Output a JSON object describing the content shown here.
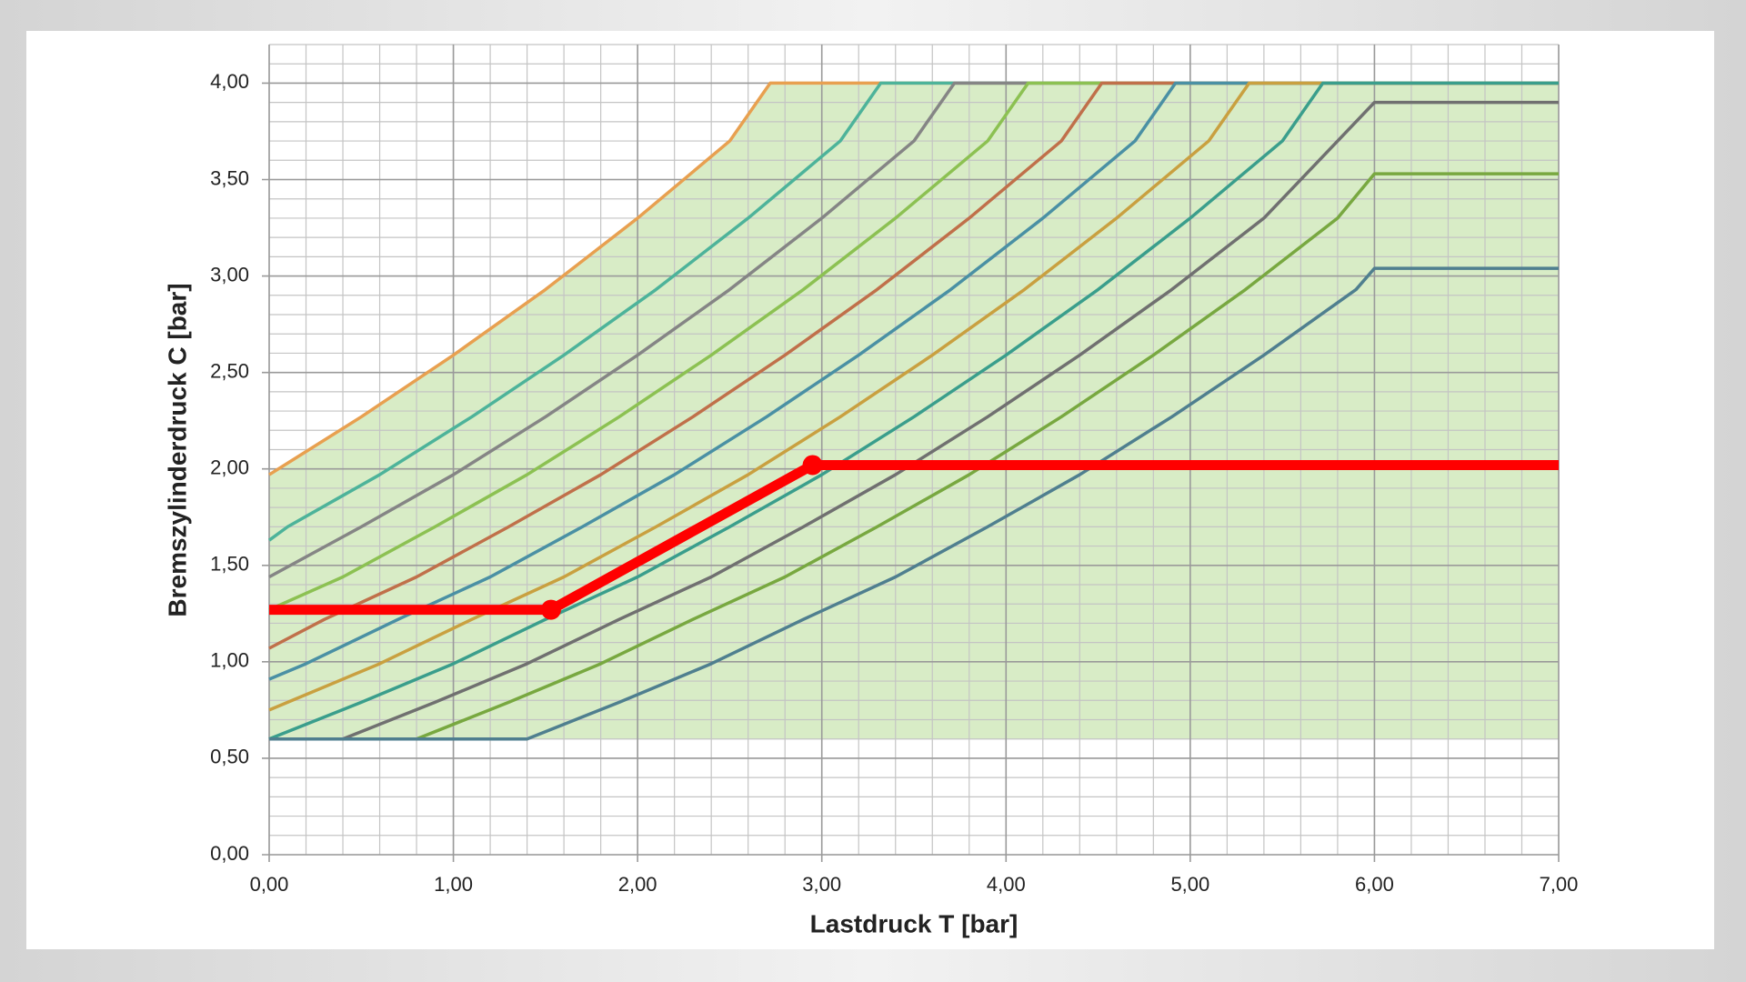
{
  "chart_data": {
    "type": "line",
    "xlabel": "Lastdruck T [bar]",
    "ylabel": "Bremszylinderdruck C [bar]",
    "xlim": [
      0,
      7
    ],
    "ylim": [
      0,
      4.2
    ],
    "xticks": [
      {
        "value": 0,
        "label": "0,00"
      },
      {
        "value": 1,
        "label": "1,00"
      },
      {
        "value": 2,
        "label": "2,00"
      },
      {
        "value": 3,
        "label": "3,00"
      },
      {
        "value": 4,
        "label": "4,00"
      },
      {
        "value": 5,
        "label": "5,00"
      },
      {
        "value": 6,
        "label": "6,00"
      },
      {
        "value": 7,
        "label": "7,00"
      }
    ],
    "yticks": [
      {
        "value": 0,
        "label": "0,00"
      },
      {
        "value": 0.5,
        "label": "0,50"
      },
      {
        "value": 1,
        "label": "1,00"
      },
      {
        "value": 1.5,
        "label": "1,50"
      },
      {
        "value": 2,
        "label": "2,00"
      },
      {
        "value": 2.5,
        "label": "2,50"
      },
      {
        "value": 3,
        "label": "3,00"
      },
      {
        "value": 3.5,
        "label": "3,50"
      },
      {
        "value": 4,
        "label": "4,00"
      }
    ],
    "grid": true,
    "minor_grid_step": {
      "x": 0.2,
      "y": 0.1
    },
    "shaded_region": {
      "ymin": 0.6,
      "color": "#d8ecc6"
    },
    "series": [
      {
        "color": "#e8a050",
        "x": [
          0,
          0.5,
          1,
          1.5,
          2,
          2.5,
          2.72,
          7
        ],
        "values": [
          1.97,
          2.27,
          2.59,
          2.93,
          3.3,
          3.7,
          4.0,
          4.0
        ]
      },
      {
        "color": "#4db39a",
        "x": [
          0,
          0.1,
          0.6,
          1.1,
          1.6,
          2.1,
          2.6,
          3.1,
          3.32,
          7
        ],
        "values": [
          1.63,
          1.7,
          1.97,
          2.27,
          2.59,
          2.93,
          3.3,
          3.7,
          4.0,
          4.0
        ]
      },
      {
        "color": "#858585",
        "x": [
          0,
          0.5,
          1,
          1.5,
          2,
          2.5,
          3,
          3.5,
          3.72,
          7
        ],
        "values": [
          1.44,
          1.7,
          1.97,
          2.27,
          2.59,
          2.93,
          3.3,
          3.7,
          4.0,
          4.0
        ]
      },
      {
        "color": "#8cc152",
        "x": [
          0,
          0.4,
          0.9,
          1.4,
          1.9,
          2.4,
          2.9,
          3.4,
          3.9,
          4.12,
          7
        ],
        "values": [
          1.27,
          1.44,
          1.7,
          1.97,
          2.27,
          2.59,
          2.93,
          3.3,
          3.7,
          4.0,
          4.0
        ]
      },
      {
        "color": "#c0704a",
        "x": [
          0,
          0.3,
          0.8,
          1.3,
          1.8,
          2.3,
          2.8,
          3.3,
          3.8,
          4.3,
          4.52,
          7
        ],
        "values": [
          1.07,
          1.22,
          1.44,
          1.7,
          1.97,
          2.27,
          2.59,
          2.93,
          3.3,
          3.7,
          4.0,
          4.0
        ]
      },
      {
        "color": "#4a90a4",
        "x": [
          0,
          0.2,
          0.7,
          1.2,
          1.7,
          2.2,
          2.7,
          3.2,
          3.7,
          4.2,
          4.7,
          4.92,
          7
        ],
        "values": [
          0.91,
          0.99,
          1.22,
          1.44,
          1.7,
          1.97,
          2.27,
          2.59,
          2.93,
          3.3,
          3.7,
          4.0,
          4.0
        ]
      },
      {
        "color": "#c9a040",
        "x": [
          0,
          0.1,
          0.6,
          1.1,
          1.6,
          2.1,
          2.6,
          3.1,
          3.6,
          4.1,
          4.6,
          5.1,
          5.32,
          7
        ],
        "values": [
          0.75,
          0.79,
          0.99,
          1.22,
          1.44,
          1.7,
          1.97,
          2.27,
          2.59,
          2.93,
          3.3,
          3.7,
          4.0,
          4.0
        ]
      },
      {
        "color": "#3a9e8c",
        "x": [
          0,
          0.5,
          1,
          1.5,
          2,
          2.5,
          3,
          3.5,
          4,
          4.5,
          5,
          5.5,
          5.72,
          7
        ],
        "values": [
          0.6,
          0.79,
          0.99,
          1.22,
          1.44,
          1.7,
          1.97,
          2.27,
          2.59,
          2.93,
          3.3,
          3.7,
          4.0,
          4.0
        ]
      },
      {
        "color": "#707070",
        "x": [
          0,
          0.4,
          0.9,
          1.4,
          1.9,
          2.4,
          2.9,
          3.4,
          3.9,
          4.4,
          4.9,
          5.4,
          6.0,
          7
        ],
        "values": [
          0.6,
          0.6,
          0.79,
          0.99,
          1.22,
          1.44,
          1.7,
          1.97,
          2.27,
          2.59,
          2.93,
          3.3,
          3.9,
          3.9
        ]
      },
      {
        "color": "#78a840",
        "x": [
          0,
          0.8,
          1.3,
          1.8,
          2.3,
          2.8,
          3.3,
          3.8,
          4.3,
          4.8,
          5.3,
          5.8,
          6.0,
          7
        ],
        "values": [
          0.6,
          0.6,
          0.79,
          0.99,
          1.22,
          1.44,
          1.7,
          1.97,
          2.27,
          2.59,
          2.93,
          3.3,
          3.53,
          3.53
        ]
      },
      {
        "color": "#4f7f8f",
        "x": [
          0,
          1.4,
          1.9,
          2.4,
          2.9,
          3.4,
          3.9,
          4.4,
          4.9,
          5.4,
          5.9,
          6.0,
          7
        ],
        "values": [
          0.6,
          0.6,
          0.79,
          0.99,
          1.22,
          1.44,
          1.7,
          1.97,
          2.27,
          2.59,
          2.93,
          3.04,
          3.04
        ]
      },
      {
        "color": "#ff0000",
        "thick": true,
        "markers": true,
        "x": [
          0,
          1.53,
          2.95,
          7
        ],
        "values": [
          1.27,
          1.27,
          2.02,
          2.02
        ]
      }
    ]
  }
}
